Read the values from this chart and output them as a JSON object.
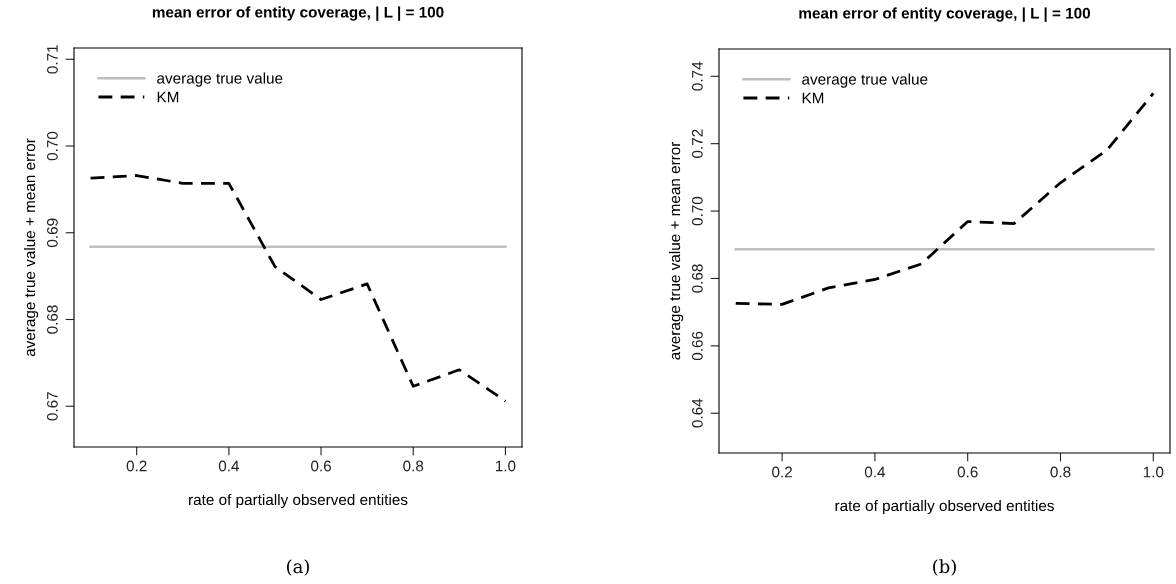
{
  "chart_data": [
    {
      "type": "line",
      "title": "mean error of entity coverage, | L | = 100",
      "xlabel": "rate of partially observed entities",
      "ylabel": "average true value + mean error",
      "annotations": [
        "(a)"
      ],
      "x": [
        0.1,
        0.2,
        0.3,
        0.4,
        0.5,
        0.6,
        0.7,
        0.8,
        0.9,
        1.0
      ],
      "series": [
        {
          "name": "average true value",
          "color": "#bebebe",
          "line_style": "solid",
          "values": [
            0.6884,
            0.6884,
            0.6884,
            0.6884,
            0.6884,
            0.6884,
            0.6884,
            0.6884,
            0.6884,
            0.6884
          ]
        },
        {
          "name": "KM",
          "color": "#000000",
          "line_style": "dashed",
          "values": [
            0.6963,
            0.6966,
            0.6957,
            0.6957,
            0.6861,
            0.6823,
            0.6841,
            0.6723,
            0.6742,
            0.6706
          ]
        }
      ],
      "xlim": [
        0.064,
        1.036
      ],
      "ylim": [
        0.6653,
        0.7113
      ],
      "xticks": [
        0.2,
        0.4,
        0.6,
        0.8,
        {
          "value": 1.0,
          "label": "1.0"
        }
      ],
      "yticks": [
        0.67,
        0.68,
        0.69,
        {
          "value": 0.7,
          "label": "0.70"
        },
        0.71
      ],
      "legend": "top left",
      "grid": false
    },
    {
      "type": "line",
      "title": "mean error of entity coverage, | L | = 100",
      "xlabel": "rate of partially observed entities",
      "ylabel": "average true value + mean error",
      "annotations": [
        "(b)"
      ],
      "x": [
        0.1,
        0.2,
        0.3,
        0.4,
        0.5,
        0.6,
        0.7,
        0.8,
        0.9,
        1.0
      ],
      "series": [
        {
          "name": "average true value",
          "color": "#bebebe",
          "line_style": "solid",
          "values": [
            0.6887,
            0.6887,
            0.6887,
            0.6887,
            0.6887,
            0.6887,
            0.6887,
            0.6887,
            0.6887,
            0.6887
          ]
        },
        {
          "name": "KM",
          "color": "#000000",
          "line_style": "dashed",
          "values": [
            0.6726,
            0.6723,
            0.6772,
            0.6797,
            0.6843,
            0.6969,
            0.6963,
            0.7084,
            0.7181,
            0.7349
          ]
        }
      ],
      "xlim": [
        0.064,
        1.036
      ],
      "ylim": [
        0.6282,
        0.7481
      ],
      "xticks": [
        0.2,
        0.4,
        0.6,
        0.8,
        {
          "value": 1.0,
          "label": "1.0"
        }
      ],
      "yticks": [
        0.64,
        0.66,
        0.68,
        {
          "value": 0.7,
          "label": "0.70"
        },
        0.72,
        0.74
      ],
      "legend": "top left",
      "grid": false
    }
  ]
}
